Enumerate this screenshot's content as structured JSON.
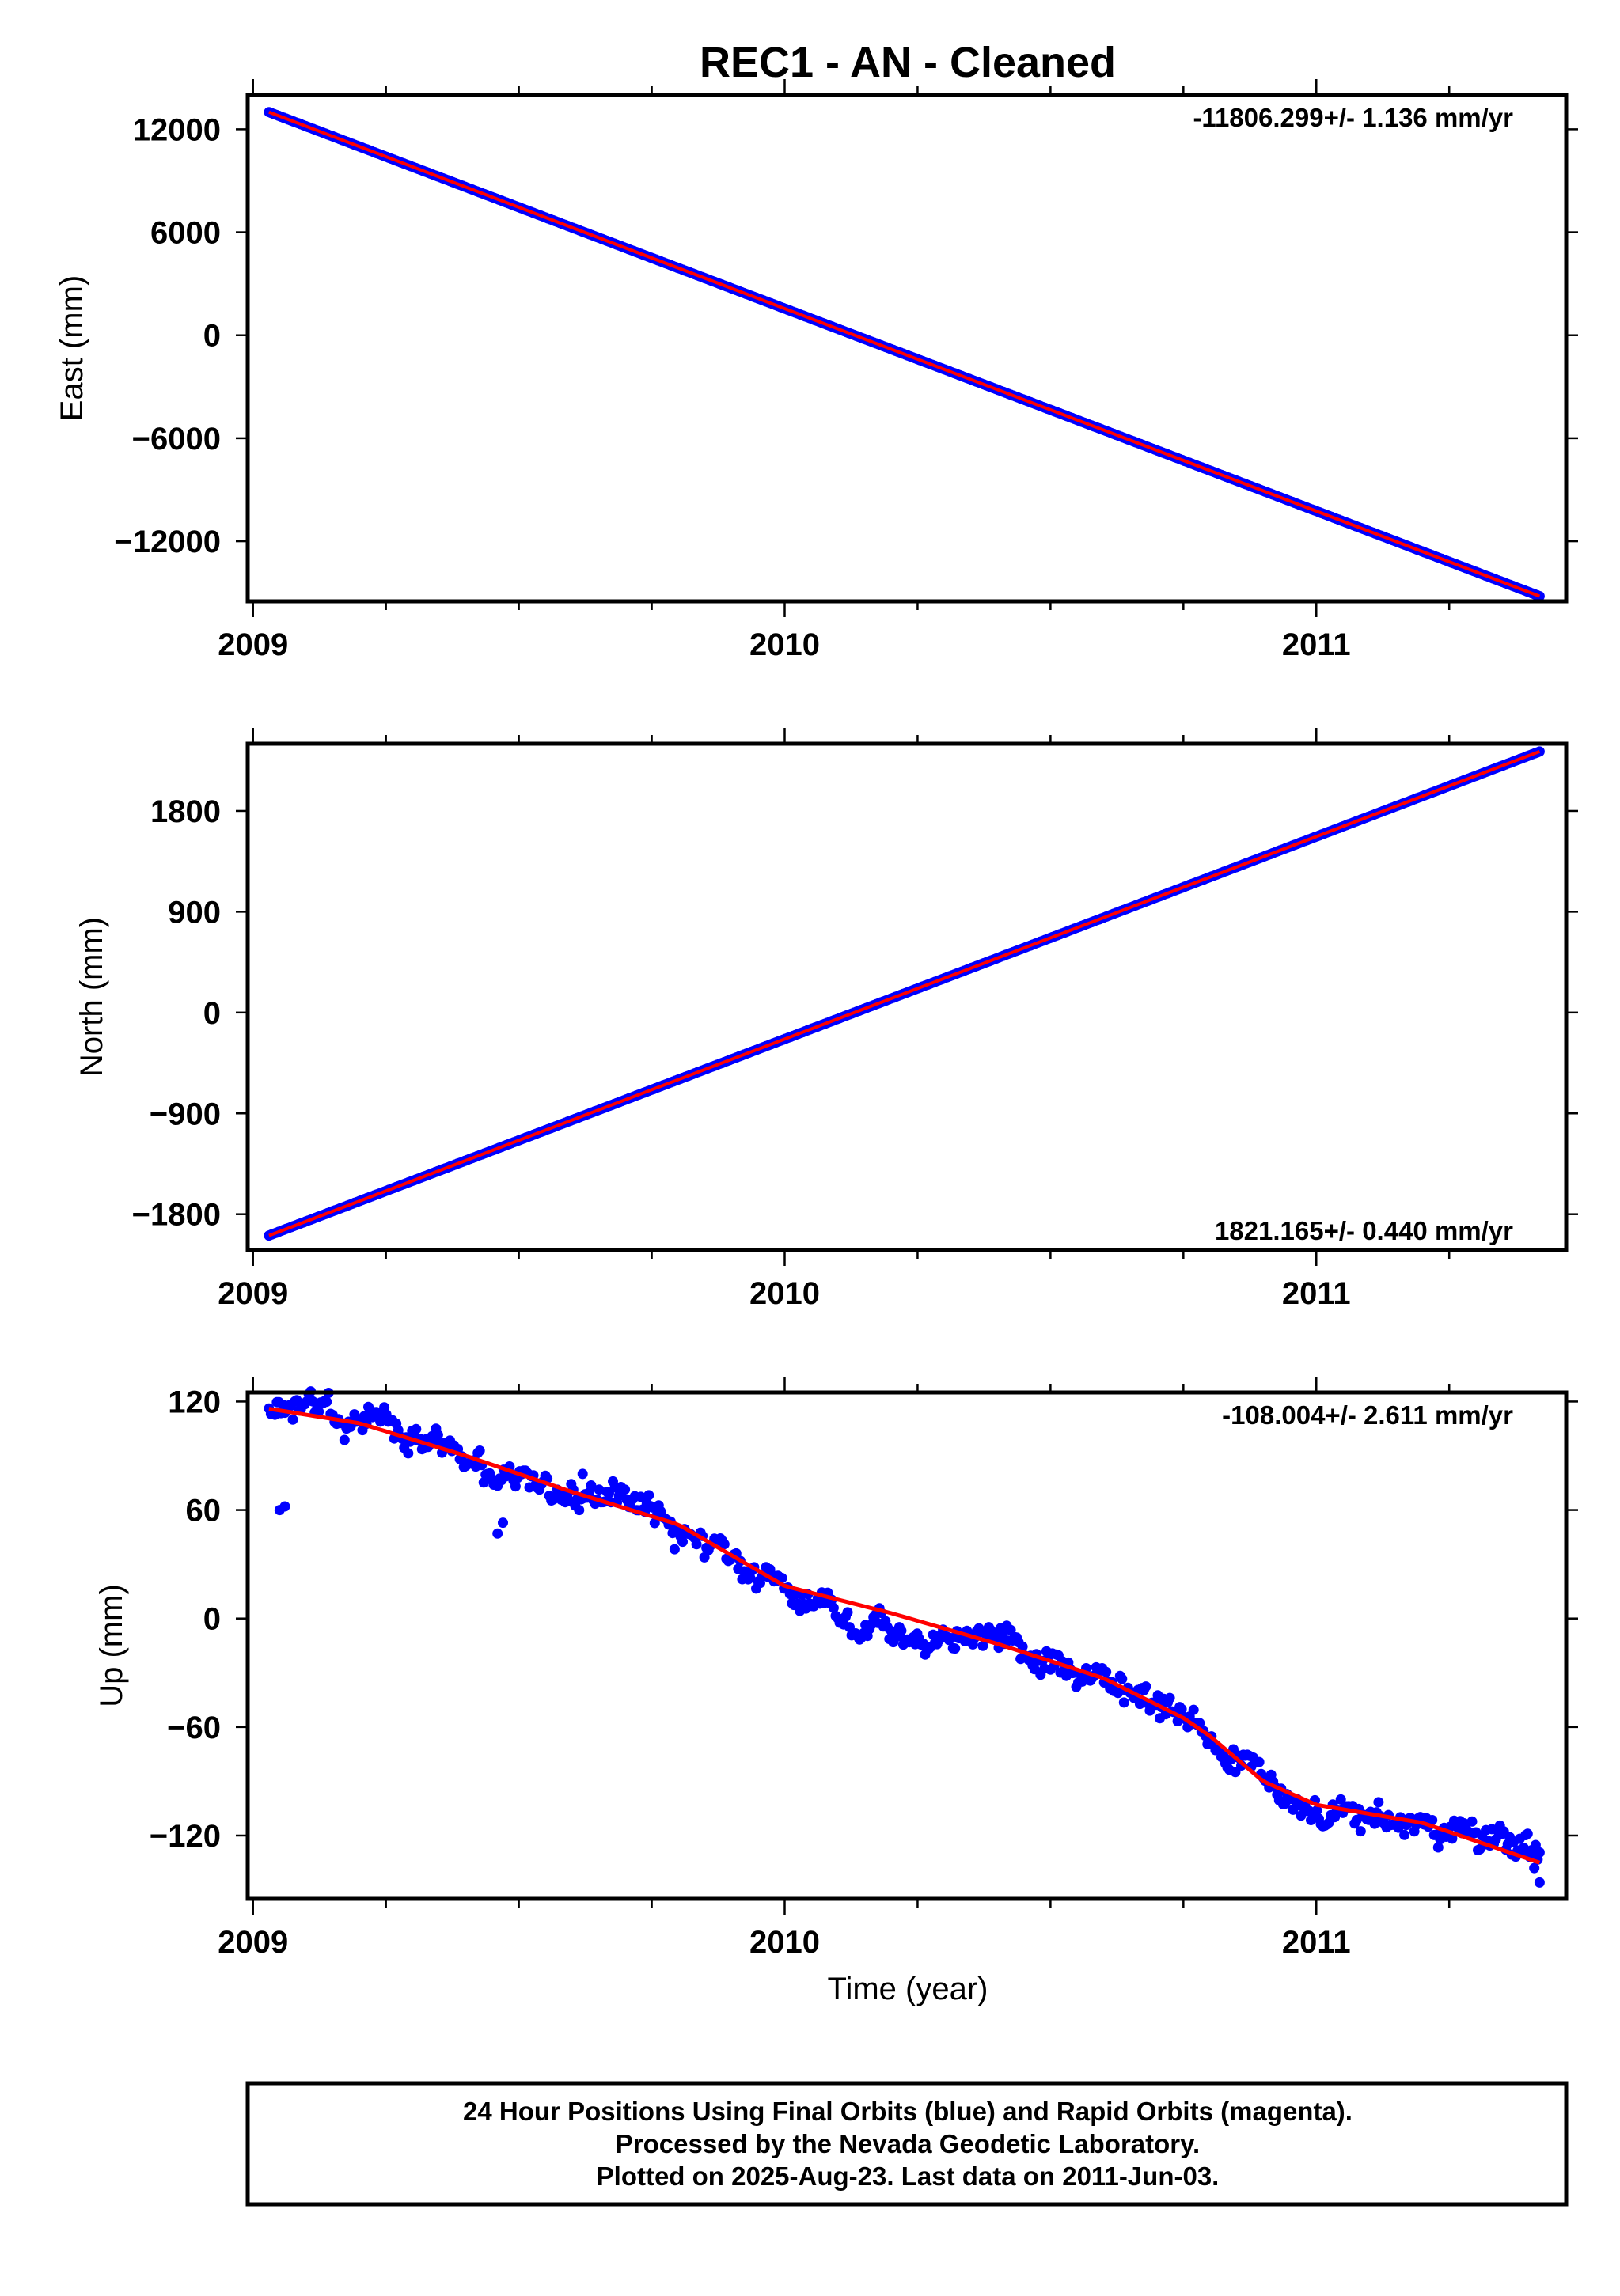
{
  "title": "REC1  - AN - Cleaned",
  "chart_data": [
    {
      "type": "scatter",
      "ylabel": "East (mm)",
      "xlabel": "",
      "xlim": [
        2008.99,
        2011.47
      ],
      "ylim": [
        -15500,
        14000
      ],
      "xticks": [
        2009,
        2010,
        2011
      ],
      "yticks": [
        12000,
        6000,
        0,
        -6000,
        -12000
      ],
      "ytick_labels": [
        "12000",
        "6000",
        "0",
        "−6000",
        "−12000"
      ],
      "rate_text": "-11806.299+/- 1.136 mm/yr",
      "rate_position": "top-right",
      "grid": false,
      "start": [
        2009.03,
        13000
      ],
      "end": [
        2011.42,
        -15200
      ],
      "series": [
        {
          "name": "Final Orbits",
          "kind": "points",
          "color": "#0000ff",
          "x_range": [
            2009.03,
            2011.42
          ],
          "slope": -11806.299,
          "scatter": 0
        },
        {
          "name": "Fit",
          "kind": "line",
          "color": "#ff0000"
        }
      ]
    },
    {
      "type": "scatter",
      "ylabel": "North (mm)",
      "xlabel": "",
      "xlim": [
        2008.99,
        2011.47
      ],
      "ylim": [
        -2120,
        2400
      ],
      "xticks": [
        2009,
        2010,
        2011
      ],
      "yticks": [
        1800,
        900,
        0,
        -900,
        -1800
      ],
      "ytick_labels": [
        "1800",
        "900",
        "0",
        "−900",
        "−1800"
      ],
      "rate_text": "1821.165+/- 0.440 mm/yr",
      "rate_position": "bottom-right",
      "grid": false,
      "start": [
        2009.03,
        -1990
      ],
      "end": [
        2011.42,
        2330
      ],
      "series": [
        {
          "name": "Final Orbits",
          "kind": "points",
          "color": "#0000ff",
          "x_range": [
            2009.03,
            2011.42
          ],
          "slope": 1821.165,
          "scatter": 0
        },
        {
          "name": "Fit",
          "kind": "line",
          "color": "#ff0000"
        }
      ]
    },
    {
      "type": "scatter",
      "ylabel": "Up (mm)",
      "xlabel": "Time (year)",
      "xlim": [
        2008.99,
        2011.47
      ],
      "ylim": [
        -155,
        125
      ],
      "xticks": [
        2009,
        2010,
        2011
      ],
      "yticks": [
        120,
        60,
        0,
        -60,
        -120
      ],
      "ytick_labels": [
        "120",
        "60",
        "0",
        "−60",
        "−120"
      ],
      "rate_text": "-108.004+/- 2.611 mm/yr",
      "rate_position": "top-right",
      "grid": false,
      "fit_line": {
        "x": [
          2009.03,
          2009.2,
          2009.4,
          2009.6,
          2009.8,
          2009.9,
          2010.0,
          2010.2,
          2010.4,
          2010.6,
          2010.75,
          2010.8,
          2010.9,
          2011.0,
          2011.2,
          2011.42
        ],
        "y": [
          116,
          108,
          90,
          70,
          52,
          35,
          18,
          3,
          -14,
          -33,
          -55,
          -65,
          -90,
          -103,
          -113,
          -135
        ]
      },
      "outliers": {
        "x": [
          2009.05,
          2009.06,
          2009.47,
          2009.46,
          2009.62,
          2011.42,
          2011.41
        ],
        "y": [
          60,
          62,
          53,
          47,
          80,
          -146,
          -138
        ]
      },
      "series": [
        {
          "name": "Final Orbits",
          "kind": "points",
          "color": "#0000ff",
          "x_range": [
            2009.03,
            2011.42
          ],
          "scatter": 11
        },
        {
          "name": "Fit",
          "kind": "line",
          "color": "#ff0000"
        }
      ]
    }
  ],
  "footer": {
    "line1": "24 Hour Positions Using Final Orbits (blue) and Rapid Orbits (magenta).",
    "line2": "Processed by the Nevada Geodetic Laboratory.",
    "line3": "Plotted on 2025-Aug-23. Last data on 2011-Jun-03."
  }
}
